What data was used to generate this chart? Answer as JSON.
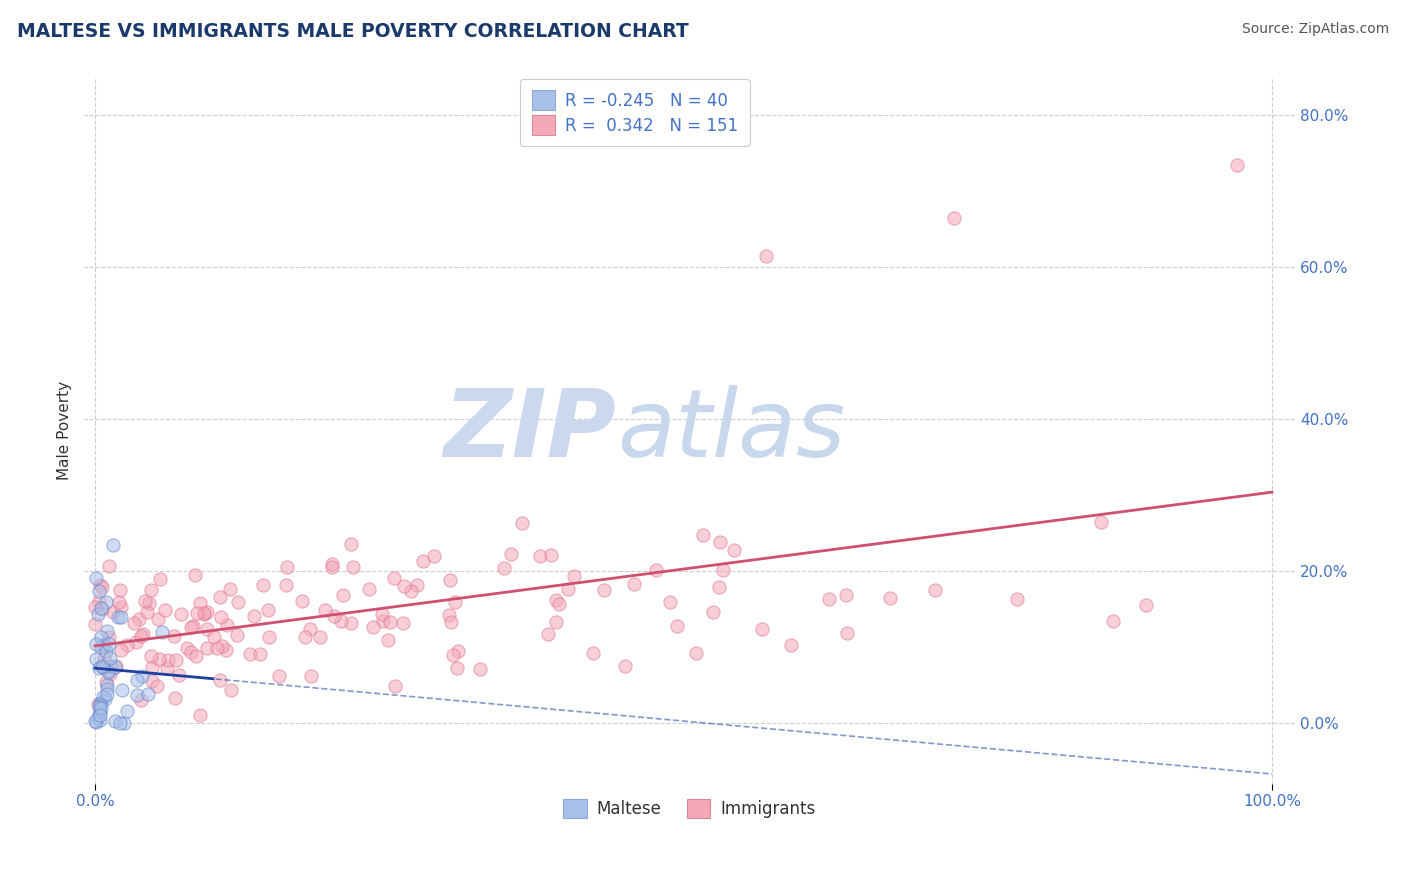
{
  "title": "MALTESE VS IMMIGRANTS MALE POVERTY CORRELATION CHART",
  "source": "Source: ZipAtlas.com",
  "ylabel": "Male Poverty",
  "legend_label1": "Maltese",
  "legend_label2": "Immigrants",
  "R1": -0.245,
  "N1": 40,
  "R2": 0.342,
  "N2": 151,
  "maltese_color": "#a8bfe8",
  "maltese_edge_color": "#6080c8",
  "immigrants_color": "#f4a8b8",
  "immigrants_edge_color": "#e07090",
  "maltese_line_color": "#2040a0",
  "immigrants_line_color": "#d05070",
  "background_color": "#ffffff",
  "grid_color": "#c8c8c8",
  "title_color": "#1a3a6b",
  "source_color": "#555555",
  "tick_color": "#4472c4",
  "ylabel_color": "#333333",
  "watermark_zip_color": "#ccd8ee",
  "watermark_atlas_color": "#c8d8ec",
  "ylim": [
    -0.08,
    0.85
  ],
  "xlim": [
    -0.01,
    1.02
  ],
  "yticks": [
    0.0,
    0.2,
    0.4,
    0.6,
    0.8
  ],
  "ytick_labels": [
    "0.0%",
    "20.0%",
    "40.0%",
    "60.0%",
    "80.0%"
  ],
  "xtick_labels_pos": [
    0.0,
    1.0
  ],
  "xtick_labels": [
    "0.0%",
    "100.0%"
  ]
}
